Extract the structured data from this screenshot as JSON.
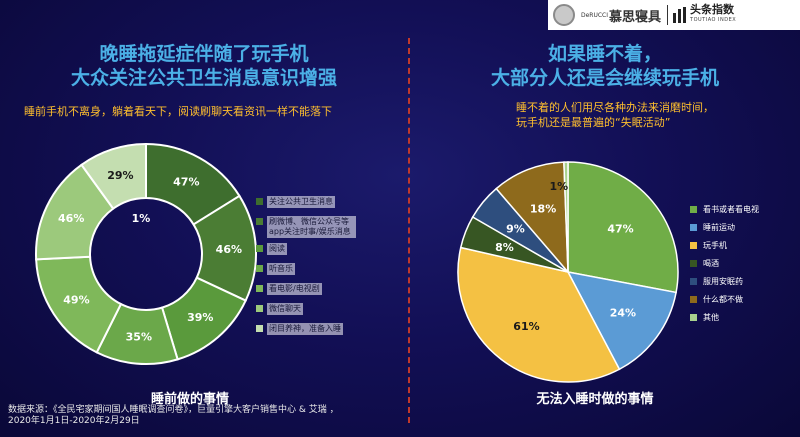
{
  "branding": {
    "logo_small": "DeRUCCI",
    "brand_name": "慕思寝具",
    "index_name": "头条指数",
    "index_name_en": "TOUTIAO INDEX"
  },
  "left": {
    "title_line1": "晚睡拖延症伴随了玩手机",
    "title_line2": "大众关注公共卫生消息意识增强",
    "subtitle": "睡前手机不离身，躺着看天下，阅读刷聊天看资讯一样不能落下",
    "caption": "睡前做的事情"
  },
  "right": {
    "title_line1": "如果睡不着，",
    "title_line2": "大部分人还是会继续玩手机",
    "subtitle_line1": "睡不着的人们用尽各种办法来消磨时间，",
    "subtitle_line2": "玩手机还是最普遍的“失眠活动”",
    "caption": "无法入睡时做的事情"
  },
  "source": {
    "line1": "数据来源：《全民宅家期间国人睡眠调查问卷》，巨量引擎大客户销售中心 & 艾瑞 ，",
    "line2": "2020年1月1日-2020年2月29日"
  },
  "chart_data": [
    {
      "type": "pie",
      "variant": "donut",
      "title": "睡前做的事情",
      "legend_position": "right",
      "slices": [
        {
          "label": "关注公共卫生消息",
          "value_label": "47%",
          "color": "#3e6e2e"
        },
        {
          "label": "刷微博、微信公众号等app关注时事/娱乐消息",
          "value_label": "46%",
          "color": "#4b7d34"
        },
        {
          "label": "阅读",
          "value_label": "39%",
          "color": "#5a9a3c"
        },
        {
          "label": "听音乐",
          "value_label": "35%",
          "color": "#6ba84a"
        },
        {
          "label": "看电影/电视剧",
          "value_label": "49%",
          "color": "#7fb85a"
        },
        {
          "label": "微信聊天",
          "value_label": "46%",
          "color": "#9cc97c"
        },
        {
          "label": "闭目养神，准备入睡",
          "value_label": "29%",
          "color": "#c4deb0"
        }
      ],
      "center_label": "1%",
      "ring_weights": [
        47,
        46,
        39,
        35,
        49,
        46,
        29
      ]
    },
    {
      "type": "pie",
      "title": "无法入睡时做的事情",
      "legend_position": "right",
      "slices": [
        {
          "label": "看书或者看电视",
          "value": 47,
          "value_label": "47%",
          "color": "#70ad47"
        },
        {
          "label": "睡前运动",
          "value": 24,
          "value_label": "24%",
          "color": "#5b9bd5"
        },
        {
          "label": "玩手机",
          "value": 61,
          "value_label": "61%",
          "color": "#f4c143"
        },
        {
          "label": "喝酒",
          "value": 8,
          "value_label": "8%",
          "color": "#375623"
        },
        {
          "label": "服用安眠药",
          "value": 9,
          "value_label": "9%",
          "color": "#2e4e7e"
        },
        {
          "label": "什么都不做",
          "value": 18,
          "value_label": "18%",
          "color": "#8e6a1c"
        },
        {
          "label": "其他",
          "value": 1,
          "value_label": "1%",
          "color": "#a9d18e"
        }
      ]
    }
  ]
}
